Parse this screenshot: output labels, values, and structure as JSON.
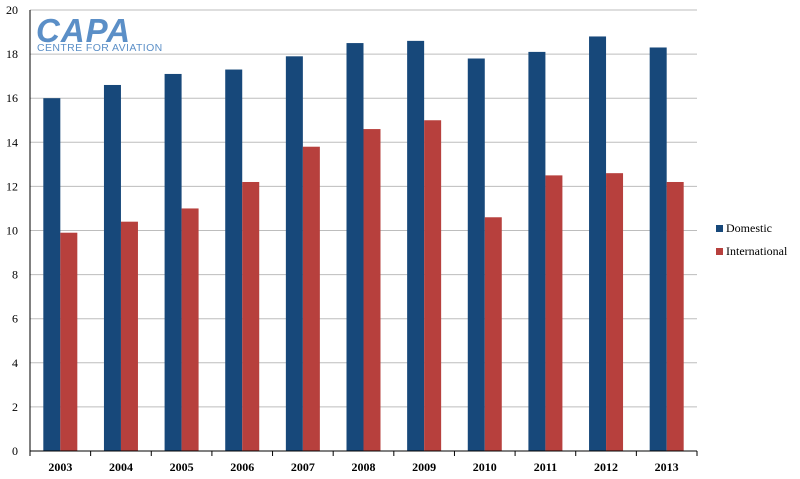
{
  "logo": {
    "name": "CAPA",
    "tagline": "CENTRE FOR AVIATION"
  },
  "chart_data": {
    "type": "bar",
    "title": "",
    "xlabel": "",
    "ylabel": "",
    "categories": [
      "2003",
      "2004",
      "2005",
      "2006",
      "2007",
      "2008",
      "2009",
      "2010",
      "2011",
      "2012",
      "2013"
    ],
    "series": [
      {
        "name": "Domestic",
        "color": "#17487a",
        "values": [
          16.0,
          16.6,
          17.1,
          17.3,
          17.9,
          18.5,
          18.6,
          17.8,
          18.1,
          18.8,
          18.3
        ]
      },
      {
        "name": "International",
        "color": "#b7403d",
        "values": [
          9.9,
          10.4,
          11.0,
          12.2,
          13.8,
          14.6,
          15.0,
          10.6,
          12.5,
          12.6,
          12.2
        ]
      }
    ],
    "ylim": [
      0,
      20
    ],
    "yticks": [
      0,
      2,
      4,
      6,
      8,
      10,
      12,
      14,
      16,
      18,
      20
    ],
    "grid": true,
    "legend_position": "right"
  }
}
